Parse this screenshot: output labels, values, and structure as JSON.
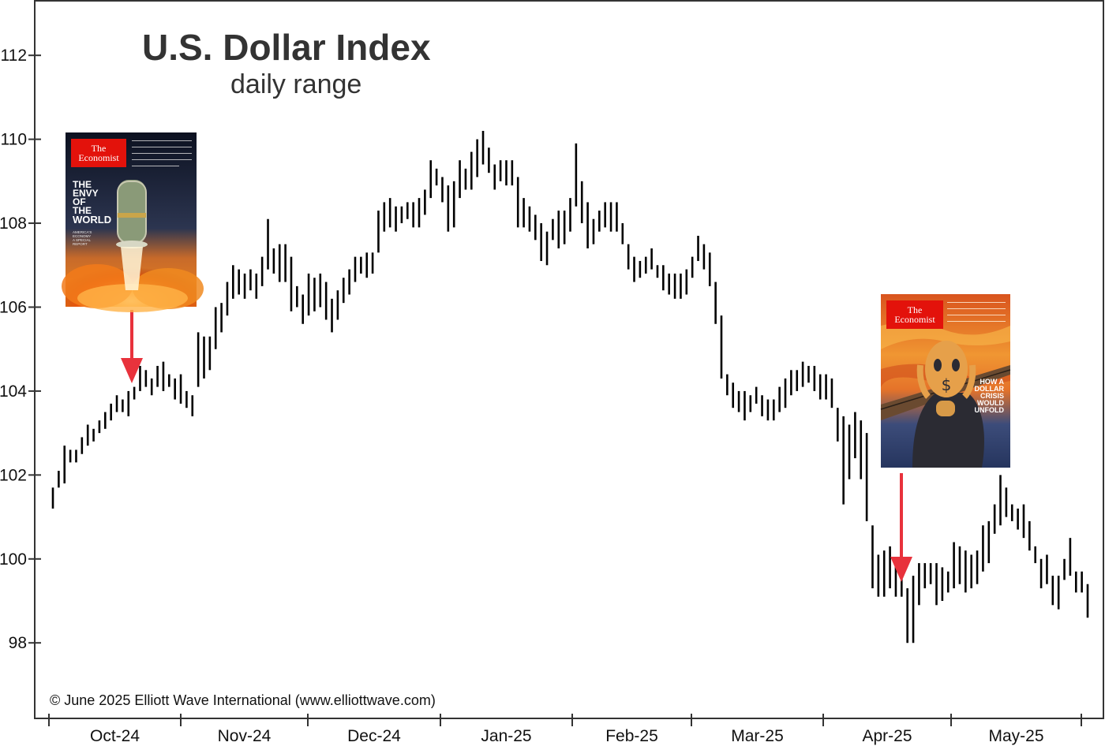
{
  "chart_data": {
    "type": "ohlc-bar",
    "title": "U.S. Dollar Index",
    "subtitle": "daily range",
    "ylim": [
      96.2,
      113.3
    ],
    "y_ticks": [
      98,
      100,
      102,
      104,
      106,
      108,
      110,
      112
    ],
    "x_tick_labels": [
      "Oct-24",
      "Nov-24",
      "Dec-24",
      "Jan-25",
      "Feb-25",
      "Mar-25",
      "Apr-25",
      "May-25"
    ],
    "grid": false,
    "copyright": "© June 2025 Elliott Wave International (www.elliottwave.com)",
    "bars": [
      [
        101.2,
        101.7
      ],
      [
        101.7,
        102.1
      ],
      [
        101.8,
        102.7
      ],
      [
        102.3,
        102.6
      ],
      [
        102.3,
        102.6
      ],
      [
        102.5,
        102.9
      ],
      [
        102.7,
        103.2
      ],
      [
        102.8,
        103.1
      ],
      [
        103.0,
        103.3
      ],
      [
        103.1,
        103.5
      ],
      [
        103.3,
        103.7
      ],
      [
        103.5,
        103.9
      ],
      [
        103.5,
        103.8
      ],
      [
        103.4,
        104.0
      ],
      [
        103.8,
        104.1
      ],
      [
        104.0,
        104.6
      ],
      [
        104.1,
        104.5
      ],
      [
        103.9,
        104.3
      ],
      [
        104.1,
        104.6
      ],
      [
        104.0,
        104.7
      ],
      [
        104.1,
        104.4
      ],
      [
        103.8,
        104.3
      ],
      [
        103.7,
        104.4
      ],
      [
        103.6,
        104.0
      ],
      [
        103.4,
        103.9
      ],
      [
        104.1,
        105.4
      ],
      [
        104.3,
        105.3
      ],
      [
        104.5,
        105.3
      ],
      [
        105.0,
        106.0
      ],
      [
        105.4,
        106.1
      ],
      [
        105.8,
        106.6
      ],
      [
        106.2,
        107.0
      ],
      [
        106.3,
        106.9
      ],
      [
        106.2,
        106.8
      ],
      [
        106.4,
        106.9
      ],
      [
        106.2,
        106.8
      ],
      [
        106.5,
        107.2
      ],
      [
        106.9,
        108.1
      ],
      [
        106.8,
        107.4
      ],
      [
        106.6,
        107.5
      ],
      [
        106.6,
        107.5
      ],
      [
        105.9,
        107.2
      ],
      [
        106.0,
        106.5
      ],
      [
        105.6,
        106.3
      ],
      [
        105.8,
        106.8
      ],
      [
        105.9,
        106.7
      ],
      [
        106.0,
        106.8
      ],
      [
        105.7,
        106.6
      ],
      [
        105.4,
        106.2
      ],
      [
        105.7,
        106.4
      ],
      [
        106.1,
        106.7
      ],
      [
        106.3,
        106.9
      ],
      [
        106.6,
        107.2
      ],
      [
        106.8,
        107.2
      ],
      [
        106.7,
        107.3
      ],
      [
        106.8,
        107.3
      ],
      [
        107.3,
        108.3
      ],
      [
        107.8,
        108.5
      ],
      [
        107.9,
        108.6
      ],
      [
        107.8,
        108.4
      ],
      [
        108.0,
        108.4
      ],
      [
        108.1,
        108.5
      ],
      [
        107.9,
        108.5
      ],
      [
        107.9,
        108.6
      ],
      [
        108.2,
        108.8
      ],
      [
        108.6,
        109.5
      ],
      [
        108.9,
        109.3
      ],
      [
        108.5,
        109.1
      ],
      [
        107.8,
        108.9
      ],
      [
        107.9,
        109.0
      ],
      [
        108.6,
        109.5
      ],
      [
        108.8,
        109.3
      ],
      [
        108.8,
        109.7
      ],
      [
        109.1,
        110.0
      ],
      [
        109.4,
        110.2
      ],
      [
        109.2,
        109.8
      ],
      [
        108.8,
        109.4
      ],
      [
        109.0,
        109.5
      ],
      [
        108.9,
        109.5
      ],
      [
        108.9,
        109.5
      ],
      [
        107.9,
        109.1
      ],
      [
        107.9,
        108.6
      ],
      [
        107.8,
        108.4
      ],
      [
        107.6,
        108.2
      ],
      [
        107.1,
        108.0
      ],
      [
        107.0,
        107.8
      ],
      [
        107.6,
        108.1
      ],
      [
        107.4,
        108.3
      ],
      [
        107.5,
        108.3
      ],
      [
        107.8,
        108.6
      ],
      [
        108.4,
        109.9
      ],
      [
        108.0,
        109.0
      ],
      [
        107.4,
        108.5
      ],
      [
        107.5,
        108.1
      ],
      [
        107.8,
        108.3
      ],
      [
        107.9,
        108.5
      ],
      [
        107.8,
        108.5
      ],
      [
        107.8,
        108.5
      ],
      [
        107.5,
        108.0
      ],
      [
        106.9,
        107.5
      ],
      [
        106.6,
        107.2
      ],
      [
        106.7,
        107.1
      ],
      [
        106.8,
        107.2
      ],
      [
        106.9,
        107.4
      ],
      [
        106.7,
        107.0
      ],
      [
        106.4,
        107.0
      ],
      [
        106.3,
        106.8
      ],
      [
        106.2,
        106.8
      ],
      [
        106.2,
        106.8
      ],
      [
        106.3,
        106.9
      ],
      [
        106.7,
        107.2
      ],
      [
        107.1,
        107.7
      ],
      [
        106.9,
        107.5
      ],
      [
        106.5,
        107.3
      ],
      [
        105.6,
        106.6
      ],
      [
        104.3,
        105.8
      ],
      [
        103.9,
        104.4
      ],
      [
        103.6,
        104.2
      ],
      [
        103.5,
        104.0
      ],
      [
        103.3,
        104.0
      ],
      [
        103.5,
        103.9
      ],
      [
        103.7,
        104.1
      ],
      [
        103.4,
        103.9
      ],
      [
        103.3,
        103.8
      ],
      [
        103.3,
        103.8
      ],
      [
        103.5,
        104.1
      ],
      [
        103.6,
        104.3
      ],
      [
        103.9,
        104.5
      ],
      [
        104.0,
        104.5
      ],
      [
        104.1,
        104.7
      ],
      [
        104.2,
        104.6
      ],
      [
        104.0,
        104.6
      ],
      [
        103.8,
        104.4
      ],
      [
        103.8,
        104.4
      ],
      [
        103.6,
        104.3
      ],
      [
        102.8,
        103.6
      ],
      [
        101.3,
        103.4
      ],
      [
        101.9,
        103.2
      ],
      [
        102.4,
        103.5
      ],
      [
        101.9,
        103.3
      ],
      [
        100.9,
        103.0
      ],
      [
        99.3,
        100.8
      ],
      [
        99.1,
        100.1
      ],
      [
        99.1,
        100.2
      ],
      [
        99.3,
        100.3
      ],
      [
        99.1,
        99.9
      ],
      [
        99.1,
        99.6
      ],
      [
        98.0,
        99.3
      ],
      [
        98.0,
        99.6
      ],
      [
        98.9,
        99.9
      ],
      [
        99.3,
        99.9
      ],
      [
        99.4,
        99.9
      ],
      [
        98.9,
        99.9
      ],
      [
        99.0,
        99.8
      ],
      [
        99.2,
        99.7
      ],
      [
        99.3,
        100.4
      ],
      [
        99.4,
        100.3
      ],
      [
        99.2,
        100.2
      ],
      [
        99.3,
        100.1
      ],
      [
        99.4,
        100.2
      ],
      [
        99.7,
        100.8
      ],
      [
        99.9,
        100.9
      ],
      [
        100.6,
        101.3
      ],
      [
        100.8,
        102.0
      ],
      [
        101.0,
        101.7
      ],
      [
        100.9,
        101.3
      ],
      [
        100.7,
        101.2
      ],
      [
        100.5,
        101.3
      ],
      [
        100.2,
        100.9
      ],
      [
        99.9,
        100.3
      ],
      [
        99.3,
        100.0
      ],
      [
        99.4,
        100.1
      ],
      [
        98.9,
        99.6
      ],
      [
        98.8,
        99.6
      ],
      [
        99.5,
        100.0
      ],
      [
        99.6,
        100.5
      ],
      [
        99.2,
        99.7
      ],
      [
        99.2,
        99.7
      ],
      [
        98.6,
        99.4
      ]
    ],
    "annotations": [
      {
        "type": "arrow",
        "color": "#e8323c",
        "bar_index": 15,
        "description": "first cover arrow"
      },
      {
        "type": "arrow",
        "color": "#e8323c",
        "bar_index": 143,
        "description": "second cover arrow"
      }
    ]
  },
  "covers": [
    {
      "masthead": [
        "The",
        "Economist"
      ],
      "headline": [
        "THE",
        "ENVY",
        "OF",
        "THE",
        "WORLD"
      ],
      "subline": [
        "AMERICA'S",
        "ECONOMY",
        "A SPECIAL",
        "REPORT"
      ],
      "palette": {
        "top": "#0e1424",
        "mid": "#3a3c55",
        "glow": "#ff9a2e",
        "fire": "#f06a12"
      }
    },
    {
      "masthead": [
        "The",
        "Economist"
      ],
      "headline": [
        "HOW A",
        "DOLLAR",
        "CRISIS",
        "WOULD",
        "UNFOLD"
      ],
      "palette": {
        "sky": "#e8682a",
        "sky2": "#f2a23a",
        "water": "#2a3f6a",
        "figure": "#2b2b33",
        "face": "#e6a04a"
      }
    }
  ],
  "colors": {
    "bars": "#000000",
    "axis": "#333333",
    "arrow": "#e8323c",
    "masthead": "#e3120b"
  }
}
